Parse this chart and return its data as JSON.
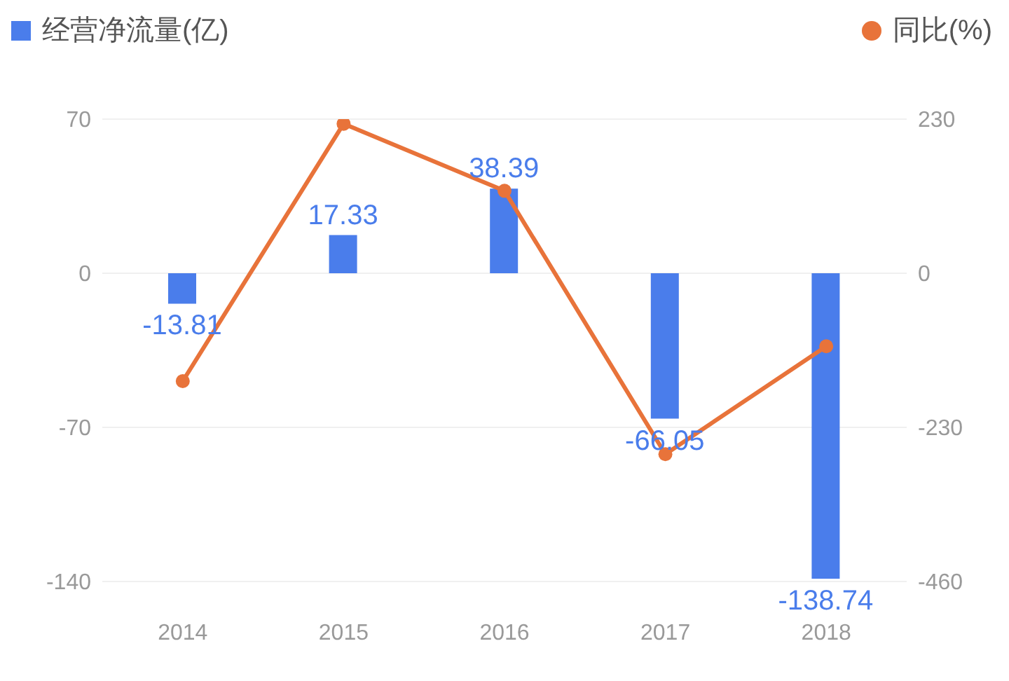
{
  "chart_data": {
    "type": "bar",
    "categories": [
      "2014",
      "2015",
      "2016",
      "2017",
      "2018"
    ],
    "series": [
      {
        "name": "经营净流量(亿)",
        "color": "#4a7deb",
        "values": [
          -13.81,
          17.33,
          38.39,
          -66.05,
          -138.74
        ],
        "value_labels": [
          "-13.81",
          "17.33",
          "38.39",
          "-66.05",
          "-138.74"
        ]
      },
      {
        "name": "同比(%)",
        "type": "line",
        "axis": "y2",
        "color": "#e8733a",
        "values": [
          -161,
          223,
          123,
          -270,
          -109
        ]
      }
    ],
    "ylim": [
      -140,
      70
    ],
    "yticks": [
      -140,
      -70,
      0,
      70
    ],
    "y2lim": [
      -460,
      230
    ],
    "y2ticks": [
      -460,
      -230,
      0,
      230
    ],
    "legend": "top",
    "marker": "circle",
    "grid": "y"
  }
}
